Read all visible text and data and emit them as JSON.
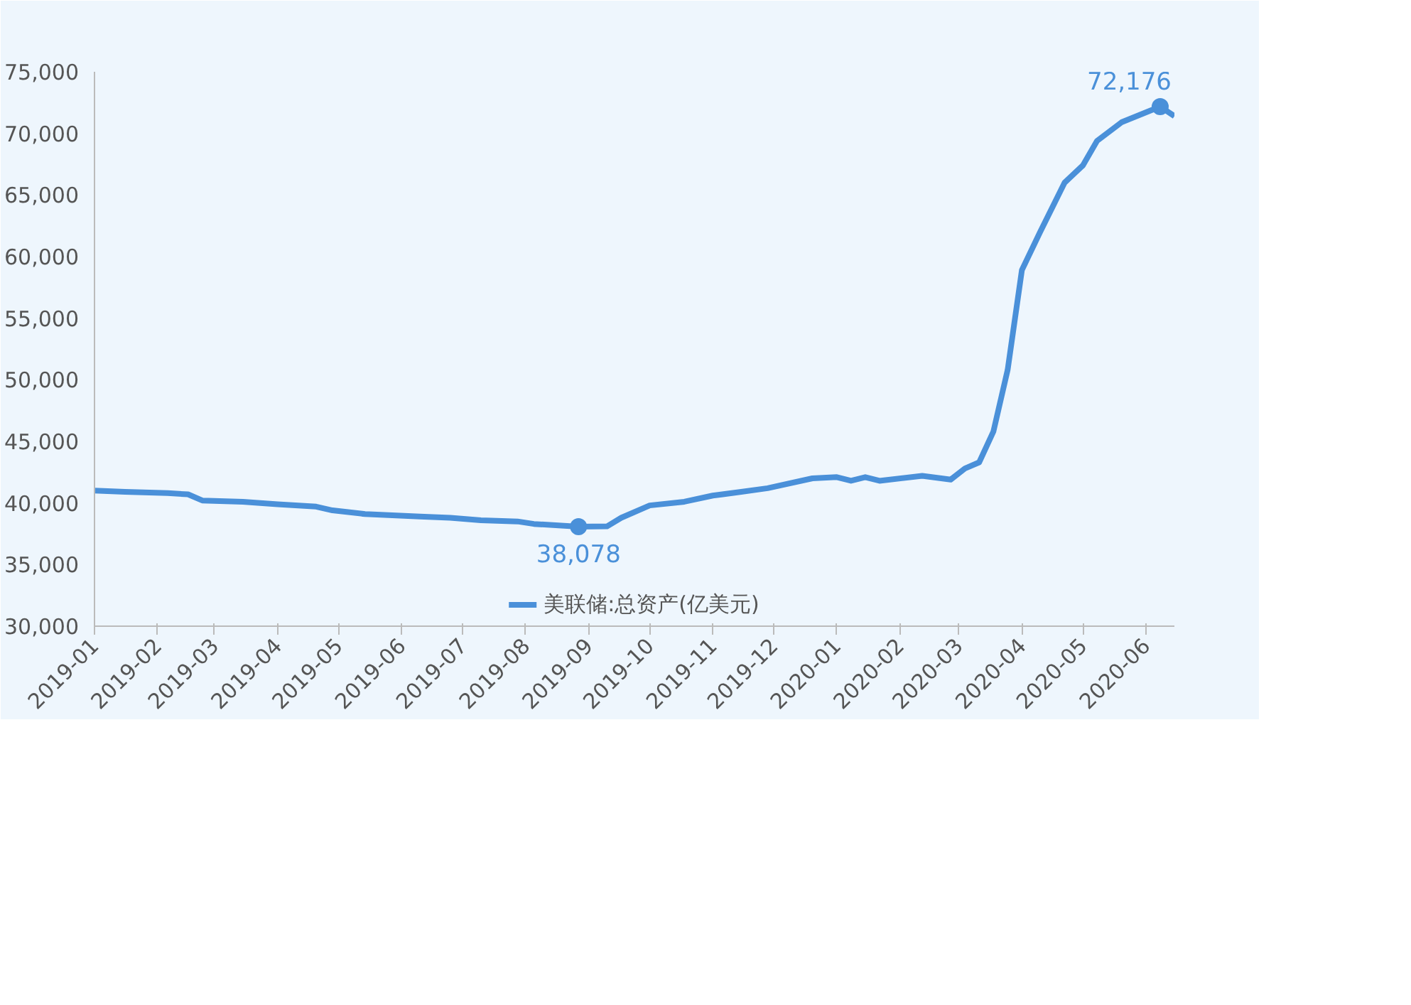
{
  "chart_data": {
    "type": "line",
    "legend": "bottom",
    "grid": false,
    "marker": "none",
    "line_style": "solid",
    "x": [
      "2019-01-01",
      "2019-01-16",
      "2019-02-06",
      "2019-02-16",
      "2019-02-23",
      "2019-03-15",
      "2019-04-01",
      "2019-04-20",
      "2019-04-28",
      "2019-05-14",
      "2019-06-10",
      "2019-06-25",
      "2019-07-10",
      "2019-07-28",
      "2019-08-05",
      "2019-08-27",
      "2019-09-10",
      "2019-09-17",
      "2019-10-01",
      "2019-10-18",
      "2019-11-01",
      "2019-11-15",
      "2019-11-28",
      "2019-12-20",
      "2020-01-01",
      "2020-01-08",
      "2020-01-15",
      "2020-01-22",
      "2020-02-12",
      "2020-02-26",
      "2020-03-04",
      "2020-03-11",
      "2020-03-18",
      "2020-03-25",
      "2020-04-01",
      "2020-04-10",
      "2020-04-22",
      "2020-05-01",
      "2020-05-08",
      "2020-05-20",
      "2020-06-08",
      "2020-06-15"
    ],
    "series": [
      {
        "name": "美联储:总资产(亿美元)",
        "color": "#4a90d9",
        "values": [
          41000,
          40900,
          40800,
          40700,
          40200,
          40100,
          39900,
          39700,
          39400,
          39100,
          38900,
          38800,
          38600,
          38500,
          38300,
          38078,
          38100,
          38800,
          39800,
          40100,
          40600,
          40900,
          41200,
          42000,
          42100,
          41800,
          42100,
          41800,
          42200,
          41900,
          42800,
          43300,
          45800,
          50800,
          58900,
          62000,
          66000,
          67400,
          69400,
          70900,
          72176,
          71400
        ]
      },
      {
        "type": "scatter",
        "marker": "circle",
        "color": "#4a90d9",
        "x": [
          "2019-08-27",
          "2020-06-08"
        ],
        "values": [
          38078,
          72176
        ]
      }
    ],
    "xlim": [
      "2019-01-01",
      "2020-06-15"
    ],
    "xticks": [
      "2019-01",
      "2019-02",
      "2019-03",
      "2019-04",
      "2019-05",
      "2019-06",
      "2019-07",
      "2019-08",
      "2019-09",
      "2019-10",
      "2019-11",
      "2019-12",
      "2020-01",
      "2020-02",
      "2020-03",
      "2020-04",
      "2020-05",
      "2020-06"
    ],
    "ylim": [
      30000,
      75000
    ],
    "yticks": [
      {
        "value": 30000,
        "label": "30,000"
      },
      {
        "value": 35000,
        "label": "35,000"
      },
      {
        "value": 40000,
        "label": "40,000"
      },
      {
        "value": 45000,
        "label": "45,000"
      },
      {
        "value": 50000,
        "label": "50,000"
      },
      {
        "value": 55000,
        "label": "55,000"
      },
      {
        "value": 60000,
        "label": "60,000"
      },
      {
        "value": 65000,
        "label": "65,000"
      },
      {
        "value": 70000,
        "label": "70,000"
      },
      {
        "value": 75000,
        "label": "75,000"
      }
    ],
    "annotations": [
      {
        "text": "38,078",
        "x": "2019-08-27",
        "y": 38078
      },
      {
        "text": "72,176",
        "x": "2020-06-08",
        "y": 72176
      }
    ]
  }
}
